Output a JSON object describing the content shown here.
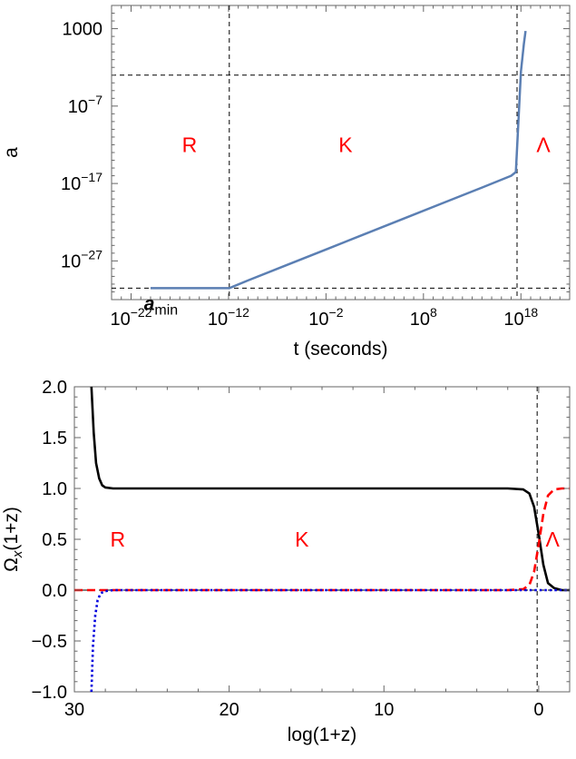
{
  "chart_data": [
    {
      "type": "line",
      "xlabel": "t (seconds)",
      "ylabel": "a",
      "x_scale": "log10",
      "y_scale": "log10",
      "xlim": [
        1e-24,
        1e+23
      ],
      "ylim": [
        1e-32,
        1000000.0
      ],
      "x_ticks": [
        {
          "exp": -22,
          "label": "10",
          "sup": "−22"
        },
        {
          "exp": -12,
          "label": "10",
          "sup": "−12"
        },
        {
          "exp": -2,
          "label": "10",
          "sup": "−2"
        },
        {
          "exp": 8,
          "label": "10",
          "sup": "8"
        },
        {
          "exp": 18,
          "label": "10",
          "sup": "18"
        }
      ],
      "y_ticks": [
        {
          "exp": 3,
          "label": "1000",
          "sup": ""
        },
        {
          "exp": -7,
          "label": "10",
          "sup": "−7"
        },
        {
          "exp": -17,
          "label": "10",
          "sup": "−17"
        },
        {
          "exp": -27,
          "label": "10",
          "sup": "−27"
        }
      ],
      "series": [
        {
          "color": "#5b7fb3",
          "x": [
            1e-20,
            1e-16,
            1e-13,
            1.2e-12,
            1e-10,
            1e-06,
            0.01,
            100.0,
            1000000.0,
            10000000000.0,
            100000000000000.0,
            1e+17,
            3e+17,
            1e+18,
            2e+18,
            3e+18
          ],
          "y": [
            3e-31,
            3e-31,
            3e-31,
            3e-31,
            3e-30,
            3e-28,
            3e-26,
            3e-24,
            3e-22,
            3e-20,
            3e-18,
            1e-16,
            3e-16,
            0.003,
            10.0,
            500.0
          ]
        }
      ],
      "vlines_x": [
        1.2e-12,
        4e+17
      ],
      "hlines_y": [
        3e-31,
        0.001
      ],
      "regions": [
        {
          "label": "R",
          "x": 1e-16,
          "y": 1e-12
        },
        {
          "label": "K",
          "x": 1.0,
          "y": 1e-12
        },
        {
          "label": "Λ",
          "x": 2e+20,
          "y": 1e-12
        }
      ],
      "annotation": {
        "label": "a",
        "sub": "min",
        "x": 1e-19,
        "y": 1e-31
      },
      "grid": false
    },
    {
      "type": "line",
      "xlabel": "log(1+z)",
      "ylabel": "Ω",
      "ylabel_sub": "x",
      "ylabel_suffix": "(1+z)",
      "xlim": [
        30,
        -2
      ],
      "ylim": [
        -1.0,
        2.0
      ],
      "x_ticks": [
        30,
        20,
        10,
        0
      ],
      "y_ticks": [
        "−1.0",
        "−0.5",
        "0.0",
        "0.5",
        "1.0",
        "1.5",
        "2.0"
      ],
      "y_tick_values": [
        -1.0,
        -0.5,
        0.0,
        0.5,
        1.0,
        1.5,
        2.0
      ],
      "series": [
        {
          "color": "#000000",
          "style": "solid",
          "x": [
            28.9,
            28.75,
            28.6,
            28.4,
            28.2,
            28.0,
            27.5,
            26,
            20,
            10,
            2,
            1.0,
            0.6,
            0.3,
            0.0,
            -0.3,
            -0.6,
            -1.0,
            -1.5,
            -2.0
          ],
          "y": [
            2.0,
            1.55,
            1.25,
            1.1,
            1.03,
            1.01,
            1.0,
            1.0,
            1.0,
            1.0,
            1.0,
            0.99,
            0.95,
            0.82,
            0.55,
            0.25,
            0.07,
            0.02,
            0.0,
            0.0
          ]
        },
        {
          "color": "#ff0000",
          "style": "dashed",
          "x": [
            30,
            20,
            10,
            2,
            1.0,
            0.6,
            0.3,
            0.0,
            -0.3,
            -0.6,
            -1.0,
            -1.5,
            -2.0
          ],
          "y": [
            0.0,
            0.0,
            0.0,
            0.0,
            0.01,
            0.05,
            0.18,
            0.45,
            0.75,
            0.93,
            0.99,
            1.0,
            1.0
          ]
        },
        {
          "color": "#0000dd",
          "style": "dotted",
          "x": [
            28.9,
            28.8,
            28.65,
            28.5,
            28.3,
            28.0,
            27.5,
            26,
            20,
            10,
            0,
            -2
          ],
          "y": [
            -1.0,
            -0.55,
            -0.25,
            -0.1,
            -0.03,
            -0.01,
            0.0,
            0.0,
            0.0,
            0.0,
            0.0,
            0.0
          ]
        }
      ],
      "vlines_x": [
        0.1
      ],
      "hlines_y": [
        0.0
      ],
      "regions": [
        {
          "label": "R",
          "x": 27.2,
          "y": 0.5
        },
        {
          "label": "K",
          "x": 15.3,
          "y": 0.5
        },
        {
          "label": "Λ",
          "x": -0.9,
          "y": 0.5
        }
      ],
      "grid": false
    }
  ]
}
